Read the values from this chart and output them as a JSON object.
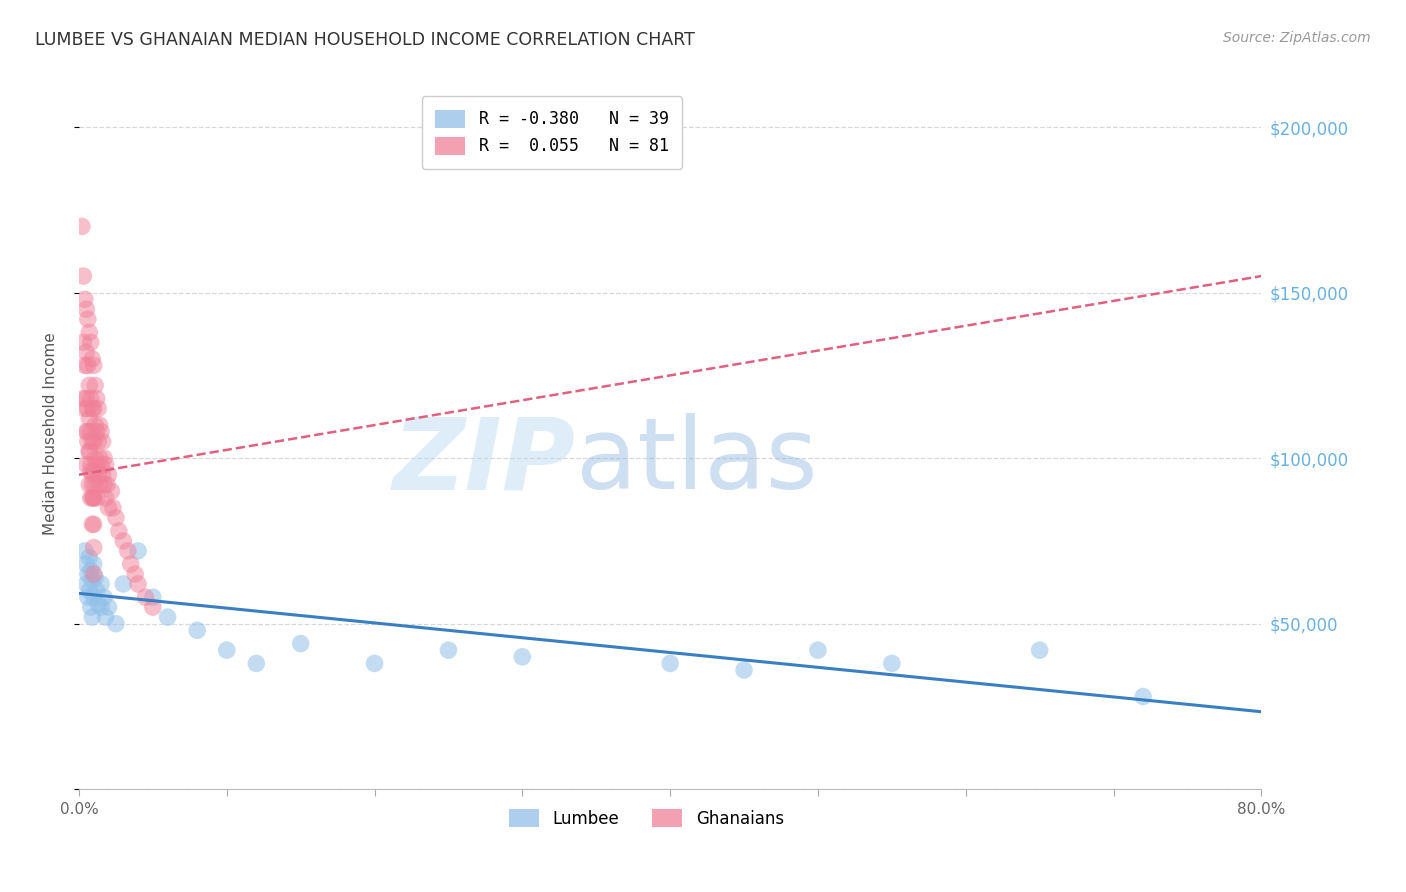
{
  "title": "LUMBEE VS GHANAIAN MEDIAN HOUSEHOLD INCOME CORRELATION CHART",
  "source": "Source: ZipAtlas.com",
  "ylabel": "Median Household Income",
  "xlim": [
    0.0,
    0.8
  ],
  "ylim": [
    0,
    215000
  ],
  "yticks": [
    0,
    50000,
    100000,
    150000,
    200000
  ],
  "xticks": [
    0.0,
    0.1,
    0.2,
    0.3,
    0.4,
    0.5,
    0.6,
    0.7,
    0.8
  ],
  "background_color": "#ffffff",
  "grid_color": "#d8d8d8",
  "lumbee_color": "#92c0e8",
  "ghanaian_color": "#f08098",
  "lumbee_R": -0.38,
  "lumbee_N": 39,
  "ghanaian_R": 0.055,
  "ghanaian_N": 81,
  "lumbee_line_color": "#3a7fc1",
  "ghanaian_line_color": "#e06080",
  "watermark_zip": "ZIP",
  "watermark_atlas": "atlas",
  "lumbee_x": [
    0.004,
    0.005,
    0.005,
    0.006,
    0.006,
    0.007,
    0.007,
    0.008,
    0.008,
    0.009,
    0.009,
    0.01,
    0.01,
    0.011,
    0.012,
    0.013,
    0.015,
    0.015,
    0.017,
    0.018,
    0.02,
    0.025,
    0.03,
    0.04,
    0.05,
    0.06,
    0.08,
    0.1,
    0.12,
    0.15,
    0.2,
    0.25,
    0.3,
    0.4,
    0.45,
    0.5,
    0.55,
    0.65,
    0.72
  ],
  "lumbee_y": [
    72000,
    68000,
    62000,
    65000,
    58000,
    70000,
    60000,
    66000,
    55000,
    63000,
    52000,
    68000,
    58000,
    64000,
    60000,
    56000,
    62000,
    55000,
    58000,
    52000,
    55000,
    50000,
    62000,
    72000,
    58000,
    52000,
    48000,
    42000,
    38000,
    44000,
    38000,
    42000,
    40000,
    38000,
    36000,
    42000,
    38000,
    42000,
    28000
  ],
  "ghanaian_x": [
    0.002,
    0.003,
    0.003,
    0.003,
    0.004,
    0.004,
    0.004,
    0.005,
    0.005,
    0.005,
    0.005,
    0.005,
    0.006,
    0.006,
    0.006,
    0.006,
    0.007,
    0.007,
    0.007,
    0.007,
    0.007,
    0.008,
    0.008,
    0.008,
    0.008,
    0.008,
    0.009,
    0.009,
    0.009,
    0.009,
    0.009,
    0.009,
    0.01,
    0.01,
    0.01,
    0.01,
    0.01,
    0.01,
    0.01,
    0.01,
    0.011,
    0.011,
    0.011,
    0.011,
    0.012,
    0.012,
    0.012,
    0.012,
    0.013,
    0.013,
    0.013,
    0.014,
    0.014,
    0.014,
    0.015,
    0.015,
    0.016,
    0.016,
    0.017,
    0.017,
    0.018,
    0.018,
    0.019,
    0.02,
    0.02,
    0.022,
    0.023,
    0.025,
    0.027,
    0.03,
    0.033,
    0.035,
    0.038,
    0.04,
    0.045,
    0.05,
    0.01,
    0.008,
    0.006,
    0.007,
    0.009
  ],
  "ghanaian_y": [
    170000,
    155000,
    135000,
    118000,
    148000,
    128000,
    115000,
    145000,
    132000,
    118000,
    108000,
    98000,
    142000,
    128000,
    115000,
    105000,
    138000,
    122000,
    112000,
    102000,
    92000,
    135000,
    118000,
    108000,
    98000,
    88000,
    130000,
    115000,
    105000,
    95000,
    88000,
    80000,
    128000,
    115000,
    105000,
    96000,
    88000,
    80000,
    73000,
    65000,
    122000,
    110000,
    100000,
    92000,
    118000,
    108000,
    98000,
    88000,
    115000,
    105000,
    95000,
    110000,
    100000,
    92000,
    108000,
    98000,
    105000,
    95000,
    100000,
    92000,
    98000,
    88000,
    92000,
    95000,
    85000,
    90000,
    85000,
    82000,
    78000,
    75000,
    72000,
    68000,
    65000,
    62000,
    58000,
    55000,
    88000,
    96000,
    108000,
    102000,
    92000
  ]
}
